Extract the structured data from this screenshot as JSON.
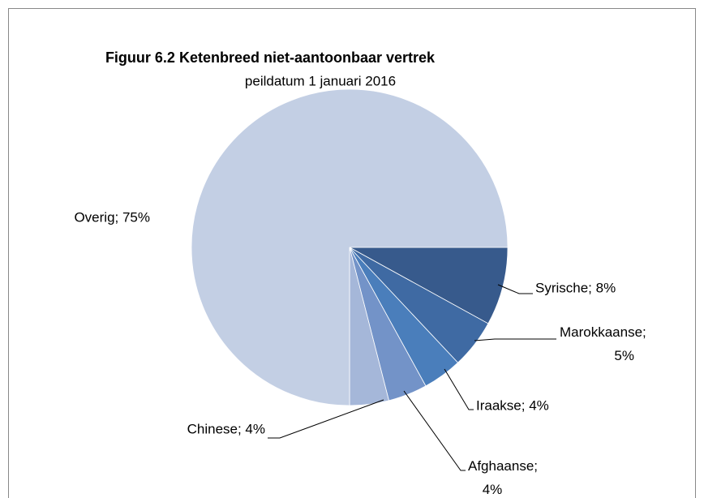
{
  "chart_data": {
    "type": "pie",
    "title": "Figuur 6.2 Ketenbreed niet-aantoonbaar vertrek",
    "subtitle": "peildatum 1 januari 2016",
    "categories": [
      "Syrische",
      "Marokkaanse",
      "Iraakse",
      "Afghaanse",
      "Chinese",
      "Overig"
    ],
    "values": [
      8,
      5,
      4,
      4,
      4,
      75
    ],
    "value_labels": [
      "Syrische; 8%",
      "Marokkaanse; 5%",
      "Iraakse; 4%",
      "Afghaanse; 4%",
      "Chinese; 4%",
      "Overig; 75%"
    ],
    "colors": [
      "#375a8c",
      "#3f6aa3",
      "#4a7ebb",
      "#7393c8",
      "#a5b7d9",
      "#c3cfe4"
    ]
  }
}
